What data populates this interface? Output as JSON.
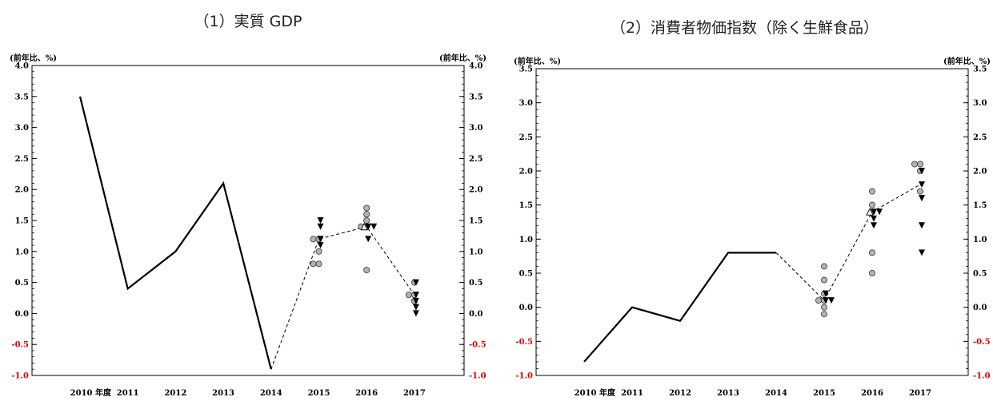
{
  "chart_data": [
    {
      "type": "line",
      "title": "（1）実質 GDP",
      "unit_left": "(前年比、%)",
      "unit_right": "(前年比、%)",
      "categories": [
        "2010 年度",
        "2011",
        "2012",
        "2013",
        "2014",
        "2015",
        "2016",
        "2017"
      ],
      "ylim": [
        -1.0,
        4.0
      ],
      "yticks": [
        4.0,
        3.5,
        3.0,
        2.5,
        2.0,
        1.5,
        1.0,
        0.5,
        0.0,
        -0.5,
        -1.0
      ],
      "ytick_labels": [
        "4.0",
        "3.5",
        "3.0",
        "2.5",
        "2.0",
        "1.5",
        "1.0",
        "0.5",
        "0.0",
        "-0.5",
        "-1.0"
      ],
      "negative_tick_color": "#e00000",
      "actual": [
        3.5,
        0.4,
        1.0,
        2.1,
        -0.9
      ],
      "forecast_median": [
        -0.9,
        1.2,
        1.4,
        0.3
      ],
      "circles": {
        "2015": [
          1.2,
          1.2,
          1.0,
          0.8,
          0.8
        ],
        "2016": [
          1.7,
          1.6,
          1.5,
          1.4,
          1.4,
          0.7
        ],
        "2017": [
          0.5,
          0.3,
          0.3,
          0.2
        ]
      },
      "triangles_down": {
        "2015": [
          1.5,
          1.4,
          1.2,
          1.1
        ],
        "2016": [
          1.4,
          1.4,
          1.2
        ],
        "2017": [
          0.5,
          0.3,
          0.2,
          0.1,
          0.0
        ]
      },
      "triangles_up": {
        "2016": [
          1.4
        ]
      }
    },
    {
      "type": "line",
      "title": "（2）消費者物価指数（除く生鮮食品）",
      "unit_left": "(前年比、%)",
      "unit_right": "(前年比、%)",
      "categories": [
        "2010 年度",
        "2011",
        "2012",
        "2013",
        "2014",
        "2015",
        "2016",
        "2017"
      ],
      "ylim": [
        -1.0,
        3.5
      ],
      "yticks": [
        3.5,
        3.0,
        2.5,
        2.0,
        1.5,
        1.0,
        0.5,
        0.0,
        -0.5,
        -1.0
      ],
      "ytick_labels": [
        "3.5",
        "3.0",
        "2.5",
        "2.0",
        "1.5",
        "1.0",
        "0.5",
        "0.0",
        "-0.5",
        "-1.0"
      ],
      "negative_tick_color": "#e00000",
      "actual": [
        -0.8,
        0.0,
        -0.2,
        0.8,
        0.8
      ],
      "forecast_median": [
        0.8,
        0.1,
        1.4,
        1.8
      ],
      "circles": {
        "2015": [
          0.6,
          0.4,
          0.2,
          0.1,
          0.1,
          0.0,
          -0.1
        ],
        "2016": [
          1.7,
          1.5,
          1.4,
          0.8,
          0.5
        ],
        "2017": [
          2.1,
          2.1,
          2.0,
          1.7
        ]
      },
      "triangles_down": {
        "2015": [
          0.2,
          0.1,
          0.1
        ],
        "2016": [
          1.4,
          1.4,
          1.3,
          1.2
        ],
        "2017": [
          2.0,
          1.8,
          1.6,
          1.2,
          0.8
        ]
      },
      "triangles_up": {
        "2016": [
          1.4
        ]
      }
    }
  ]
}
